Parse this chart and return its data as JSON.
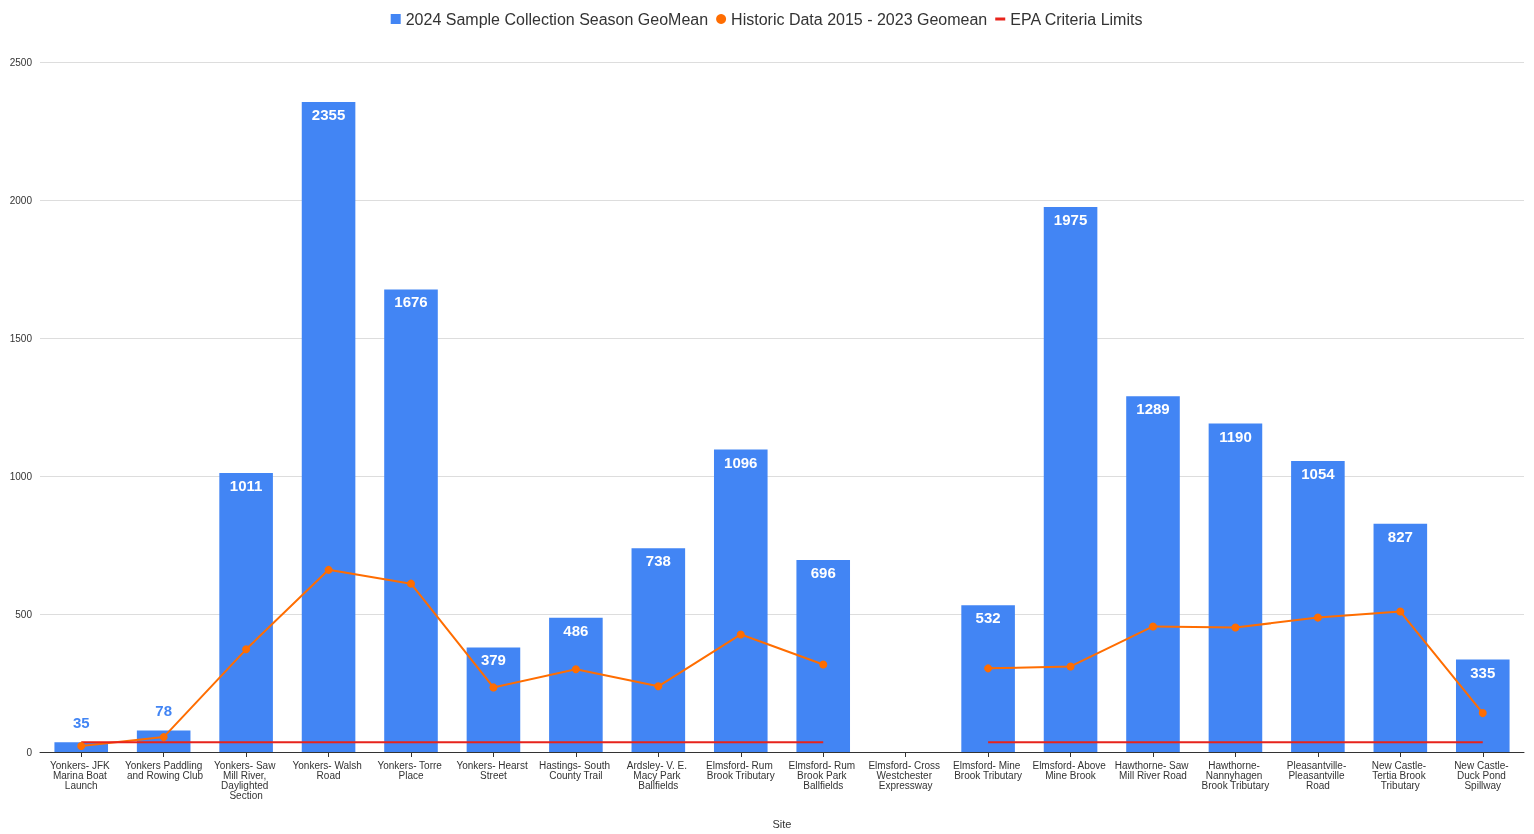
{
  "chart_data": {
    "type": "bar",
    "xlabel": "Site",
    "categories": [
      "Yonkers- JFK Marina Boat Launch",
      "Yonkers Paddling and Rowing Club",
      "Yonkers- Saw Mill River, Daylighted Section",
      "Yonkers- Walsh Road",
      "Yonkers- Torre Place",
      "Yonkers- Hearst Street",
      "Hastings- South County Trail",
      "Ardsley- V. E. Macy Park Ballfields",
      "Elmsford- Rum Brook Tributary",
      "Elmsford- Rum Brook Park Ballfields",
      "Elmsford- Cross Westchester Expressway",
      "Elmsford- Mine Brook Tributary",
      "Elmsford- Above Mine Brook",
      "Hawthorne- Saw Mill River Road",
      "Hawthorne- Nannyhagen Brook Tributary",
      "Pleasantville- Pleasantville Road",
      "New Castle- Tertia Brook Tributary",
      "New Castle- Duck Pond Spillway"
    ],
    "series": [
      {
        "name": "2024 Sample Collection Season GeoMean",
        "color": "#4285f4",
        "data_labels": true,
        "values": [
          35,
          78,
          1011,
          2355,
          1676,
          379,
          486,
          738,
          1096,
          696,
          null,
          532,
          1975,
          1289,
          1190,
          1054,
          827,
          335
        ]
      },
      {
        "name": "Historic Data 2015 - 2023 Geomean",
        "type": "line",
        "color": "#ff6d01",
        "marker": "circle",
        "values": [
          22,
          54,
          372,
          660,
          610,
          234,
          300,
          238,
          426,
          317,
          null,
          303,
          310,
          455,
          451,
          487,
          509,
          141
        ]
      },
      {
        "name": "EPA Criteria Limits",
        "type": "line",
        "color": "#e8231b",
        "marker": "none",
        "values": [
          35,
          35,
          35,
          35,
          35,
          35,
          35,
          35,
          35,
          35,
          null,
          35,
          35,
          35,
          35,
          35,
          35,
          35
        ]
      }
    ],
    "ylim": [
      0,
      2500
    ],
    "yticks": [
      0,
      500,
      1000,
      1500,
      2000,
      2500
    ],
    "grid": "y",
    "legend": "top"
  }
}
